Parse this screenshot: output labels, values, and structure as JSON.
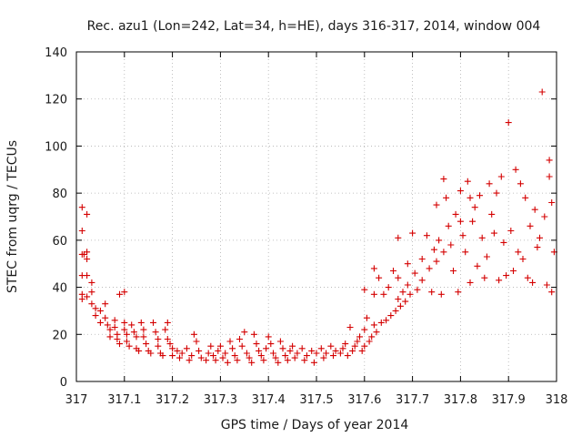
{
  "chart_data": {
    "type": "scatter",
    "title": "Rec. azu1 (Lon=242, Lat=34, h=HE), days 316-317, 2014, window 004",
    "xlabel": "GPS time / Days of year 2014",
    "ylabel": "STEC from uqrg / TECUs",
    "xlim": [
      317,
      318
    ],
    "ylim": [
      0,
      140
    ],
    "xticks": [
      "317",
      "317.1",
      "317.2",
      "317.3",
      "317.4",
      "317.5",
      "317.6",
      "317.7",
      "317.8",
      "317.9",
      "318"
    ],
    "yticks": [
      "0",
      "20",
      "40",
      "60",
      "80",
      "100",
      "120",
      "140"
    ],
    "grid": true,
    "marker": "+",
    "color": "#d40000",
    "series": [
      {
        "points": [
          [
            317.012,
            74
          ],
          [
            317.012,
            64
          ],
          [
            317.012,
            54
          ],
          [
            317.012,
            45
          ],
          [
            317.012,
            37
          ],
          [
            317.012,
            35
          ],
          [
            317.016,
            54
          ],
          [
            317.022,
            71
          ],
          [
            317.022,
            55
          ],
          [
            317.022,
            52
          ],
          [
            317.022,
            45
          ],
          [
            317.022,
            36
          ],
          [
            317.032,
            42
          ],
          [
            317.032,
            38
          ],
          [
            317.032,
            33
          ],
          [
            317.04,
            31
          ],
          [
            317.04,
            28
          ],
          [
            317.05,
            30
          ],
          [
            317.05,
            25
          ],
          [
            317.06,
            33
          ],
          [
            317.06,
            27
          ],
          [
            317.065,
            24
          ],
          [
            317.07,
            22
          ],
          [
            317.07,
            19
          ],
          [
            317.08,
            26
          ],
          [
            317.08,
            23
          ],
          [
            317.085,
            20
          ],
          [
            317.085,
            18
          ],
          [
            317.09,
            37
          ],
          [
            317.09,
            16
          ],
          [
            317.1,
            38
          ],
          [
            317.1,
            25
          ],
          [
            317.1,
            22
          ],
          [
            317.105,
            20
          ],
          [
            317.105,
            17
          ],
          [
            317.11,
            15
          ],
          [
            317.115,
            24
          ],
          [
            317.12,
            21
          ],
          [
            317.125,
            19
          ],
          [
            317.125,
            14
          ],
          [
            317.13,
            13
          ],
          [
            317.135,
            25
          ],
          [
            317.14,
            22
          ],
          [
            317.14,
            19
          ],
          [
            317.145,
            16
          ],
          [
            317.15,
            13
          ],
          [
            317.155,
            12
          ],
          [
            317.16,
            25
          ],
          [
            317.165,
            21
          ],
          [
            317.17,
            18
          ],
          [
            317.17,
            15
          ],
          [
            317.175,
            12
          ],
          [
            317.18,
            11
          ],
          [
            317.185,
            22
          ],
          [
            317.19,
            25
          ],
          [
            317.19,
            18
          ],
          [
            317.195,
            16
          ],
          [
            317.2,
            14
          ],
          [
            317.2,
            11
          ],
          [
            317.21,
            13
          ],
          [
            317.215,
            10
          ],
          [
            317.22,
            12
          ],
          [
            317.23,
            14
          ],
          [
            317.235,
            9
          ],
          [
            317.24,
            11
          ],
          [
            317.245,
            20
          ],
          [
            317.25,
            17
          ],
          [
            317.255,
            13
          ],
          [
            317.26,
            10
          ],
          [
            317.27,
            9
          ],
          [
            317.275,
            12
          ],
          [
            317.28,
            15
          ],
          [
            317.285,
            11
          ],
          [
            317.29,
            9
          ],
          [
            317.295,
            13
          ],
          [
            317.3,
            15
          ],
          [
            317.305,
            10
          ],
          [
            317.31,
            12
          ],
          [
            317.315,
            8
          ],
          [
            317.32,
            17
          ],
          [
            317.325,
            14
          ],
          [
            317.33,
            11
          ],
          [
            317.335,
            9
          ],
          [
            317.34,
            18
          ],
          [
            317.345,
            15
          ],
          [
            317.35,
            21
          ],
          [
            317.355,
            12
          ],
          [
            317.36,
            10
          ],
          [
            317.365,
            8
          ],
          [
            317.37,
            20
          ],
          [
            317.375,
            16
          ],
          [
            317.38,
            13
          ],
          [
            317.385,
            11
          ],
          [
            317.39,
            9
          ],
          [
            317.395,
            14
          ],
          [
            317.4,
            19
          ],
          [
            317.405,
            16
          ],
          [
            317.41,
            12
          ],
          [
            317.415,
            10
          ],
          [
            317.42,
            8
          ],
          [
            317.425,
            17
          ],
          [
            317.43,
            14
          ],
          [
            317.435,
            11
          ],
          [
            317.44,
            9
          ],
          [
            317.445,
            13
          ],
          [
            317.45,
            15
          ],
          [
            317.455,
            10
          ],
          [
            317.46,
            12
          ],
          [
            317.47,
            14
          ],
          [
            317.475,
            9
          ],
          [
            317.48,
            11
          ],
          [
            317.49,
            13
          ],
          [
            317.495,
            8
          ],
          [
            317.5,
            12
          ],
          [
            317.51,
            14
          ],
          [
            317.515,
            10
          ],
          [
            317.52,
            12
          ],
          [
            317.53,
            15
          ],
          [
            317.535,
            11
          ],
          [
            317.54,
            13
          ],
          [
            317.55,
            12
          ],
          [
            317.555,
            14
          ],
          [
            317.56,
            16
          ],
          [
            317.565,
            11
          ],
          [
            317.57,
            23
          ],
          [
            317.575,
            13
          ],
          [
            317.58,
            15
          ],
          [
            317.585,
            17
          ],
          [
            317.59,
            19
          ],
          [
            317.595,
            13
          ],
          [
            317.6,
            39
          ],
          [
            317.6,
            22
          ],
          [
            317.6,
            15
          ],
          [
            317.605,
            27
          ],
          [
            317.61,
            17
          ],
          [
            317.615,
            19
          ],
          [
            317.62,
            48
          ],
          [
            317.62,
            37
          ],
          [
            317.62,
            24
          ],
          [
            317.625,
            21
          ],
          [
            317.63,
            44
          ],
          [
            317.635,
            25
          ],
          [
            317.64,
            37
          ],
          [
            317.645,
            26
          ],
          [
            317.65,
            40
          ],
          [
            317.655,
            28
          ],
          [
            317.66,
            47
          ],
          [
            317.665,
            30
          ],
          [
            317.67,
            61
          ],
          [
            317.67,
            44
          ],
          [
            317.67,
            35
          ],
          [
            317.675,
            32
          ],
          [
            317.68,
            38
          ],
          [
            317.685,
            34
          ],
          [
            317.69,
            50
          ],
          [
            317.69,
            41
          ],
          [
            317.695,
            37
          ],
          [
            317.7,
            63
          ],
          [
            317.705,
            46
          ],
          [
            317.71,
            39
          ],
          [
            317.72,
            52
          ],
          [
            317.72,
            43
          ],
          [
            317.73,
            62
          ],
          [
            317.735,
            48
          ],
          [
            317.74,
            38
          ],
          [
            317.745,
            56
          ],
          [
            317.75,
            75
          ],
          [
            317.75,
            51
          ],
          [
            317.755,
            60
          ],
          [
            317.76,
            37
          ],
          [
            317.765,
            86
          ],
          [
            317.765,
            55
          ],
          [
            317.77,
            78
          ],
          [
            317.775,
            66
          ],
          [
            317.78,
            58
          ],
          [
            317.785,
            47
          ],
          [
            317.79,
            71
          ],
          [
            317.795,
            38
          ],
          [
            317.8,
            81
          ],
          [
            317.8,
            68
          ],
          [
            317.805,
            62
          ],
          [
            317.81,
            55
          ],
          [
            317.815,
            85
          ],
          [
            317.82,
            78
          ],
          [
            317.82,
            42
          ],
          [
            317.825,
            68
          ],
          [
            317.83,
            74
          ],
          [
            317.835,
            49
          ],
          [
            317.84,
            79
          ],
          [
            317.845,
            61
          ],
          [
            317.85,
            44
          ],
          [
            317.855,
            53
          ],
          [
            317.86,
            84
          ],
          [
            317.865,
            71
          ],
          [
            317.87,
            63
          ],
          [
            317.875,
            80
          ],
          [
            317.88,
            43
          ],
          [
            317.885,
            87
          ],
          [
            317.89,
            59
          ],
          [
            317.895,
            45
          ],
          [
            317.9,
            110
          ],
          [
            317.905,
            64
          ],
          [
            317.91,
            47
          ],
          [
            317.915,
            90
          ],
          [
            317.92,
            55
          ],
          [
            317.925,
            84
          ],
          [
            317.93,
            52
          ],
          [
            317.935,
            78
          ],
          [
            317.94,
            44
          ],
          [
            317.945,
            66
          ],
          [
            317.95,
            42
          ],
          [
            317.955,
            73
          ],
          [
            317.96,
            57
          ],
          [
            317.965,
            61
          ],
          [
            317.97,
            123
          ],
          [
            317.975,
            70
          ],
          [
            317.98,
            41
          ],
          [
            317.985,
            87
          ],
          [
            317.985,
            94
          ],
          [
            317.99,
            76
          ],
          [
            317.995,
            55
          ],
          [
            317.99,
            38
          ]
        ]
      }
    ]
  }
}
